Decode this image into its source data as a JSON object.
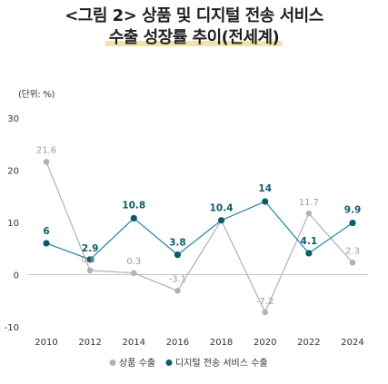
{
  "title": {
    "line1": "<그림 2> 상품 및 디지털 전송 서비스",
    "line2": "수출 성장률 추이(전세계)"
  },
  "unit_label": "(단위: %)",
  "chart_data": {
    "type": "line",
    "title": "<그림 2> 상품 및 디지털 전송 서비스 수출 성장률 추이(전세계)",
    "xlabel": "",
    "ylabel": "",
    "unit": "%",
    "x": [
      "2010",
      "2012",
      "2014",
      "2016",
      "2018",
      "2020",
      "2022",
      "2024"
    ],
    "ylim": [
      -10,
      30
    ],
    "yticks": [
      "30",
      "20",
      "10",
      "0",
      "-10"
    ],
    "grid": false,
    "legend": "bottom",
    "series": [
      {
        "name": "상품 수출",
        "values": [
          21.6,
          0.8,
          0.3,
          -3.1,
          10.4,
          -7.2,
          11.7,
          2.3
        ],
        "labels": [
          "21.6",
          "0.8",
          "0.3",
          "-3.1",
          "",
          "-7.2",
          "11.7",
          "2.3"
        ],
        "color": "#b2b2b2",
        "label_color": "#9a9a9a"
      },
      {
        "name": "디지털 전송 서비스 수출",
        "values": [
          6,
          2.9,
          10.8,
          3.8,
          10.4,
          14,
          4.1,
          9.9
        ],
        "labels": [
          "6",
          "2.9",
          "10.8",
          "3.8",
          "10.4",
          "14",
          "4.1",
          "9.9"
        ],
        "color": "#0b5c6b",
        "line_color": "#2a8fa3",
        "label_color": "#0b5c6b"
      }
    ]
  }
}
